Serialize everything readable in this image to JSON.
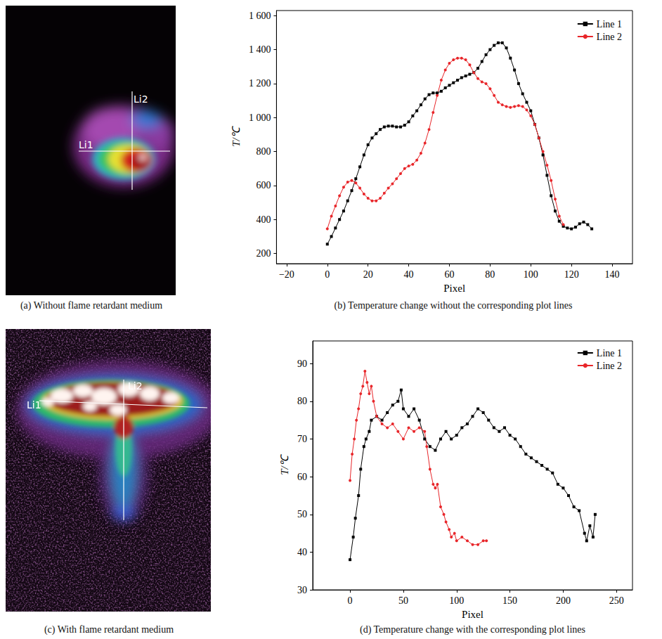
{
  "chart_data": [
    {
      "type": "line",
      "title": "(b) Temperature change without the corresponding plot lines",
      "xlabel": "Pixel",
      "ylabel": "T/℃",
      "grid": false,
      "legend": "upper right",
      "xlim": [
        -25,
        150
      ],
      "xticks": [
        {
          "value": -20,
          "label": "−20"
        },
        0,
        20,
        40,
        60,
        80,
        100,
        120,
        140
      ],
      "ylim": [
        140,
        1630
      ],
      "yticks": [
        200,
        400,
        600,
        800,
        {
          "value": 1000,
          "label": "1 000"
        },
        {
          "value": 1200,
          "label": "1 200"
        },
        {
          "value": 1400,
          "label": "1 400"
        },
        {
          "value": 1600,
          "label": "1 600"
        }
      ],
      "series": [
        {
          "name": "Line 1",
          "color": "#000000",
          "marker": "square",
          "x": [
            0,
            2,
            4,
            6,
            8,
            10,
            12,
            14,
            16,
            18,
            20,
            22,
            24,
            26,
            28,
            30,
            32,
            34,
            36,
            38,
            40,
            42,
            44,
            46,
            48,
            50,
            52,
            54,
            56,
            58,
            60,
            62,
            64,
            66,
            68,
            70,
            72,
            74,
            76,
            78,
            80,
            82,
            84,
            86,
            88,
            90,
            92,
            94,
            96,
            98,
            100,
            102,
            104,
            106,
            108,
            110,
            112,
            114,
            116,
            118,
            120,
            122,
            124,
            126,
            128,
            130
          ],
          "values": [
            255,
            300,
            350,
            400,
            450,
            510,
            570,
            640,
            710,
            780,
            840,
            880,
            905,
            930,
            945,
            950,
            950,
            945,
            945,
            955,
            975,
            1010,
            1040,
            1075,
            1110,
            1135,
            1145,
            1145,
            1155,
            1175,
            1190,
            1205,
            1220,
            1235,
            1245,
            1255,
            1265,
            1290,
            1330,
            1370,
            1400,
            1425,
            1440,
            1440,
            1410,
            1350,
            1280,
            1200,
            1140,
            1090,
            1040,
            960,
            880,
            780,
            660,
            540,
            450,
            390,
            360,
            350,
            345,
            355,
            375,
            385,
            370,
            345
          ]
        },
        {
          "name": "Line 2",
          "color": "#e8262a",
          "marker": "circle",
          "x": [
            0,
            2,
            4,
            6,
            8,
            10,
            12,
            14,
            16,
            18,
            20,
            22,
            24,
            26,
            28,
            30,
            32,
            34,
            36,
            38,
            40,
            42,
            44,
            46,
            48,
            50,
            52,
            54,
            56,
            58,
            60,
            62,
            64,
            66,
            68,
            70,
            72,
            74,
            76,
            78,
            80,
            82,
            84,
            86,
            88,
            90,
            92,
            94,
            96,
            98,
            100,
            102,
            104,
            106,
            108,
            110,
            112,
            114,
            116
          ],
          "values": [
            345,
            420,
            480,
            540,
            590,
            620,
            630,
            615,
            585,
            550,
            525,
            510,
            510,
            525,
            555,
            585,
            610,
            640,
            670,
            700,
            715,
            725,
            750,
            790,
            850,
            930,
            1030,
            1130,
            1220,
            1280,
            1320,
            1340,
            1350,
            1350,
            1340,
            1310,
            1265,
            1230,
            1210,
            1200,
            1170,
            1130,
            1090,
            1075,
            1065,
            1060,
            1065,
            1070,
            1065,
            1045,
            1010,
            960,
            880,
            800,
            720,
            630,
            520,
            420,
            370
          ]
        }
      ]
    },
    {
      "type": "line",
      "title": "(d) Temperature change with the corresponding plot lines",
      "xlabel": "Pixel",
      "ylabel": "T/℃",
      "grid": false,
      "legend": "upper right",
      "xlim": [
        -35,
        265
      ],
      "xticks": [
        0,
        50,
        100,
        150,
        200,
        250
      ],
      "ylim": [
        30,
        96
      ],
      "yticks": [
        30,
        40,
        50,
        60,
        70,
        80,
        90
      ],
      "series": [
        {
          "name": "Line 1",
          "color": "#000000",
          "marker": "square",
          "x": [
            0,
            3,
            5,
            8,
            10,
            13,
            15,
            18,
            20,
            25,
            30,
            35,
            40,
            45,
            48,
            50,
            55,
            60,
            65,
            70,
            75,
            80,
            85,
            90,
            95,
            100,
            105,
            110,
            115,
            120,
            125,
            130,
            135,
            140,
            145,
            150,
            155,
            160,
            165,
            170,
            175,
            180,
            185,
            190,
            195,
            200,
            205,
            210,
            215,
            220,
            222,
            225,
            228,
            230
          ],
          "values": [
            38,
            44,
            49,
            55,
            62,
            68,
            70,
            72,
            75,
            76,
            75,
            77,
            79,
            80,
            83,
            78,
            76,
            78,
            75,
            70,
            68,
            67,
            70,
            72,
            70,
            71,
            73,
            74,
            76,
            78,
            77,
            75,
            73,
            72,
            73,
            71,
            70,
            68,
            66,
            65,
            64,
            63,
            62,
            61,
            58,
            57,
            55,
            52,
            51,
            45,
            43,
            47,
            44,
            50
          ]
        },
        {
          "name": "Line 2",
          "color": "#e8262a",
          "marker": "circle",
          "x": [
            0,
            2,
            4,
            6,
            8,
            10,
            12,
            14,
            16,
            18,
            20,
            22,
            25,
            30,
            35,
            40,
            45,
            50,
            55,
            60,
            65,
            70,
            72,
            75,
            78,
            80,
            82,
            85,
            88,
            90,
            93,
            95,
            98,
            100,
            105,
            110,
            115,
            120,
            125,
            128
          ],
          "values": [
            59,
            66,
            70,
            75,
            78,
            82,
            84,
            88,
            85,
            82,
            84,
            80,
            76,
            74,
            73,
            74,
            72,
            70,
            73,
            72,
            73,
            72,
            68,
            62,
            58,
            57,
            58,
            52,
            50,
            48,
            46,
            44,
            45,
            43,
            44,
            43,
            42,
            42,
            43,
            43
          ]
        }
      ]
    }
  ],
  "images": [
    {
      "caption": "(a) Without flame retardant medium",
      "line_labels": [
        "Li1",
        "Li2"
      ]
    },
    {
      "caption": "(c) With flame retardant medium",
      "line_labels": [
        "Li1",
        "Li2"
      ]
    }
  ]
}
